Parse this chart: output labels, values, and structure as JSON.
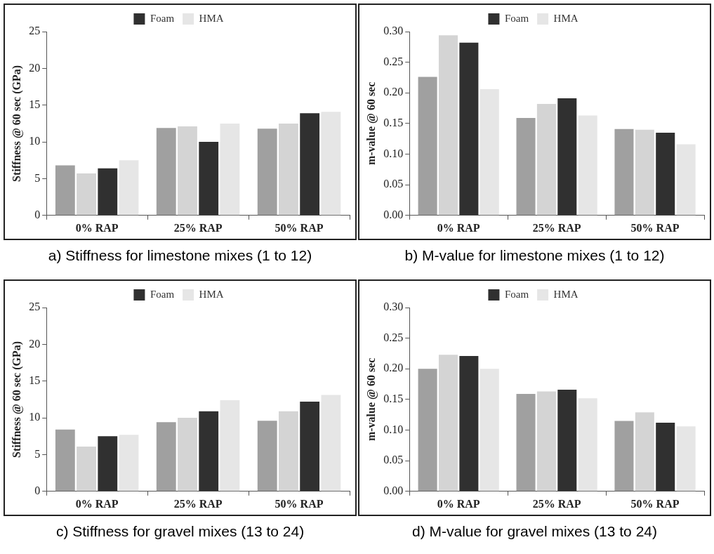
{
  "chart_data": [
    {
      "type": "bar",
      "title": "a) Stiffness for limestone mixes (1 to 12)",
      "ylabel": "Stiffness @ 60 sec (GPa)",
      "categories": [
        "0% RAP",
        "25% RAP",
        "50% RAP"
      ],
      "series": [
        {
          "color": "#a0a0a0",
          "values": [
            6.8,
            11.9,
            11.8
          ]
        },
        {
          "color": "#d4d4d4",
          "values": [
            5.7,
            12.1,
            12.5
          ]
        },
        {
          "name": "Foam",
          "color": "#303030",
          "values": [
            6.4,
            10.0,
            13.9
          ]
        },
        {
          "name": "HMA",
          "color": "#e6e6e6",
          "values": [
            7.5,
            12.5,
            14.1
          ]
        }
      ],
      "ylim": [
        0,
        25
      ],
      "yticks": [
        0,
        5,
        10,
        15,
        20,
        25
      ],
      "grid": false,
      "legend": "top"
    },
    {
      "type": "bar",
      "title": "b) M-value for limestone mixes (1 to 12)",
      "ylabel": "m-value @ 60 sec",
      "categories": [
        "0% RAP",
        "25% RAP",
        "50% RAP"
      ],
      "series": [
        {
          "color": "#a0a0a0",
          "values": [
            0.226,
            0.159,
            0.141
          ]
        },
        {
          "color": "#d4d4d4",
          "values": [
            0.294,
            0.182,
            0.14
          ]
        },
        {
          "name": "Foam",
          "color": "#303030",
          "values": [
            0.282,
            0.191,
            0.135
          ]
        },
        {
          "name": "HMA",
          "color": "#e6e6e6",
          "values": [
            0.206,
            0.163,
            0.116
          ]
        }
      ],
      "ylim": [
        0,
        0.3
      ],
      "yticks": [
        {
          "value": 0,
          "label": "0.00"
        },
        {
          "value": 0.05,
          "label": "0.05"
        },
        {
          "value": 0.1,
          "label": "0.10"
        },
        {
          "value": 0.15,
          "label": "0.15"
        },
        {
          "value": 0.2,
          "label": "0.20"
        },
        {
          "value": 0.25,
          "label": "0.25"
        },
        {
          "value": 0.3,
          "label": "0.30"
        }
      ],
      "grid": false,
      "legend": "top"
    },
    {
      "type": "bar",
      "title": "c) Stiffness for gravel mixes (13 to 24)",
      "ylabel": "Stiffness @ 60 sec (GPa)",
      "categories": [
        "0% RAP",
        "25% RAP",
        "50% RAP"
      ],
      "series": [
        {
          "color": "#a0a0a0",
          "values": [
            8.4,
            9.4,
            9.6
          ]
        },
        {
          "color": "#d4d4d4",
          "values": [
            6.1,
            10.0,
            10.9
          ]
        },
        {
          "name": "Foam",
          "color": "#303030",
          "values": [
            7.5,
            10.9,
            12.2
          ]
        },
        {
          "name": "HMA",
          "color": "#e6e6e6",
          "values": [
            7.7,
            12.4,
            13.1
          ]
        }
      ],
      "ylim": [
        0,
        25
      ],
      "yticks": [
        0,
        5,
        10,
        15,
        20,
        25
      ],
      "grid": false,
      "legend": "top"
    },
    {
      "type": "bar",
      "title": "d) M-value for gravel mixes (13 to 24)",
      "ylabel": "m-value @ 60 sec",
      "categories": [
        "0% RAP",
        "25% RAP",
        "50% RAP"
      ],
      "series": [
        {
          "color": "#a0a0a0",
          "values": [
            0.2,
            0.159,
            0.115
          ]
        },
        {
          "color": "#d4d4d4",
          "values": [
            0.223,
            0.163,
            0.129
          ]
        },
        {
          "name": "Foam",
          "color": "#303030",
          "values": [
            0.221,
            0.166,
            0.112
          ]
        },
        {
          "name": "HMA",
          "color": "#e6e6e6",
          "values": [
            0.2,
            0.152,
            0.106
          ]
        }
      ],
      "ylim": [
        0,
        0.3
      ],
      "yticks": [
        {
          "value": 0,
          "label": "0.00"
        },
        {
          "value": 0.05,
          "label": "0.05"
        },
        {
          "value": 0.1,
          "label": "0.10"
        },
        {
          "value": 0.15,
          "label": "0.15"
        },
        {
          "value": 0.2,
          "label": "0.20"
        },
        {
          "value": 0.25,
          "label": "0.25"
        },
        {
          "value": 0.3,
          "label": "0.30"
        }
      ],
      "grid": false,
      "legend": "top"
    }
  ]
}
